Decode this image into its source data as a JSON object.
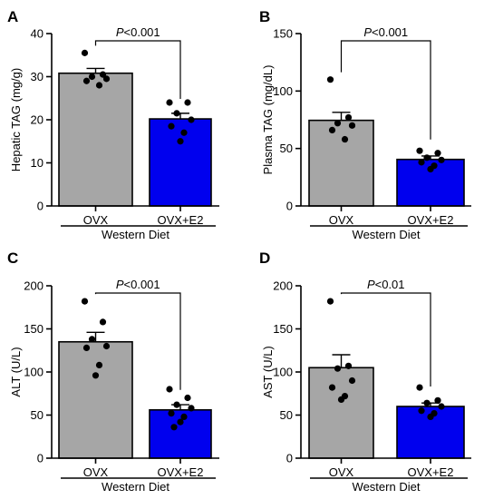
{
  "chart_data": [
    {
      "panel": "A",
      "type": "bar",
      "ylabel": "Hepatic TAG (mg/g)",
      "ylim": [
        0,
        40
      ],
      "yticks": [
        0,
        10,
        20,
        30,
        40
      ],
      "categories": [
        "OVX",
        "OVX+E2"
      ],
      "group_label": "Western Diet",
      "values": [
        30.8,
        20.2
      ],
      "sem": [
        1.1,
        1.3
      ],
      "points": [
        [
          35.5,
          30.5,
          30.0,
          29.5,
          29.0,
          28.0
        ],
        [
          24.0,
          24.0,
          21.5,
          20.0,
          18.5,
          17.0,
          15.0
        ]
      ],
      "significance": {
        "prefix": "P",
        "text": "<0.001"
      },
      "bar_colors": [
        "#a6a6a6",
        "#0000ee"
      ]
    },
    {
      "panel": "B",
      "type": "bar",
      "ylabel": "Plasma TAG (mg/dL)",
      "ylim": [
        0,
        150
      ],
      "yticks": [
        0,
        50,
        100,
        150
      ],
      "categories": [
        "OVX",
        "OVX+E2"
      ],
      "group_label": "Western Diet",
      "values": [
        74.5,
        40.5
      ],
      "sem": [
        7.0,
        3.0
      ],
      "points": [
        [
          110,
          77,
          72,
          70,
          66,
          58
        ],
        [
          48,
          46,
          42,
          40,
          38,
          35,
          32
        ]
      ],
      "significance": {
        "prefix": "P",
        "text": "<0.001"
      },
      "bar_colors": [
        "#a6a6a6",
        "#0000ee"
      ]
    },
    {
      "panel": "C",
      "type": "bar",
      "ylabel": "ALT (U/L)",
      "ylim": [
        0,
        200
      ],
      "yticks": [
        0,
        50,
        100,
        150,
        200
      ],
      "categories": [
        "OVX",
        "OVX+E2"
      ],
      "group_label": "Western Diet",
      "values": [
        135,
        56
      ],
      "sem": [
        11,
        6
      ],
      "points": [
        [
          182,
          158,
          138,
          130,
          128,
          108,
          96
        ],
        [
          80,
          70,
          62,
          58,
          52,
          48,
          42,
          36
        ]
      ],
      "significance": {
        "prefix": "P",
        "text": "<0.001"
      },
      "bar_colors": [
        "#a6a6a6",
        "#0000ee"
      ]
    },
    {
      "panel": "D",
      "type": "bar",
      "ylabel": "AST (U/L)",
      "ylim": [
        0,
        200
      ],
      "yticks": [
        0,
        50,
        100,
        150,
        200
      ],
      "categories": [
        "OVX",
        "OVX+E2"
      ],
      "group_label": "Western Diet",
      "values": [
        105,
        60
      ],
      "sem": [
        15,
        4
      ],
      "points": [
        [
          182,
          107,
          104,
          90,
          82,
          72,
          68
        ],
        [
          82,
          67,
          64,
          60,
          55,
          52,
          48
        ]
      ],
      "significance": {
        "prefix": "P",
        "text": "<0.01"
      },
      "bar_colors": [
        "#a6a6a6",
        "#0000ee"
      ]
    }
  ]
}
